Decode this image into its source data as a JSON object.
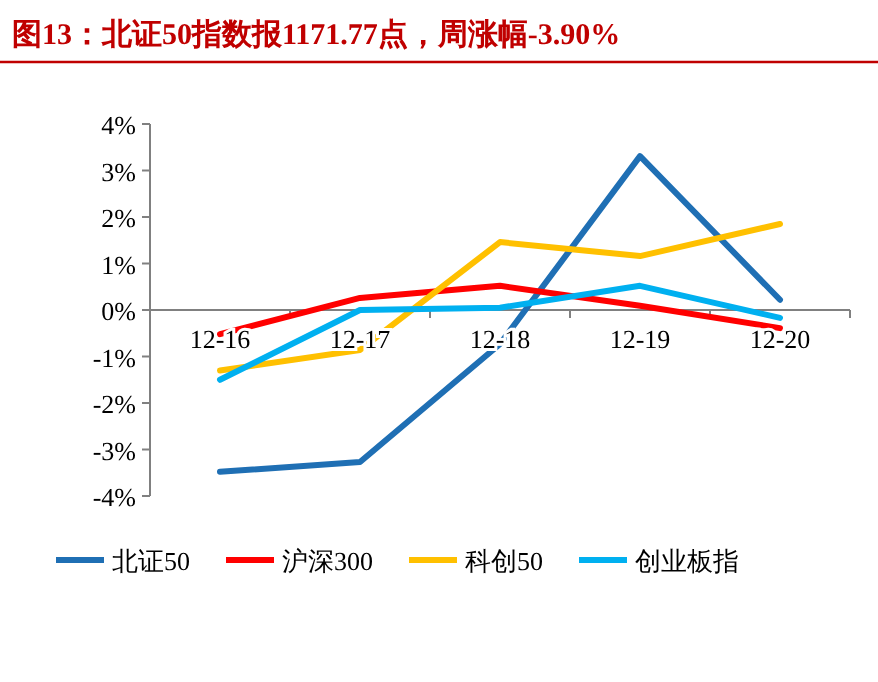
{
  "chart_data": {
    "type": "line",
    "title": "图13：北证50指数报1171.77点，周涨幅-3.90%",
    "categories": [
      "12-16",
      "12-17",
      "12-18",
      "12-19",
      "12-20"
    ],
    "series": [
      {
        "name": "北证50",
        "color": "#1f6fb4",
        "values": [
          -3.48,
          -3.27,
          -0.73,
          3.31,
          0.22
        ]
      },
      {
        "name": "沪深300",
        "color": "#ff0000",
        "values": [
          -0.52,
          0.26,
          0.52,
          0.09,
          -0.39
        ]
      },
      {
        "name": "科创50",
        "color": "#ffc000",
        "values": [
          -1.3,
          -0.86,
          1.46,
          1.16,
          1.85
        ]
      },
      {
        "name": "创业板指",
        "color": "#00b0f0",
        "values": [
          -1.5,
          0.0,
          0.05,
          0.52,
          -0.17
        ]
      }
    ],
    "ylim": [
      -4,
      4
    ],
    "yticks": [
      {
        "value": -4,
        "label": "-4%"
      },
      {
        "value": -3,
        "label": "-3%"
      },
      {
        "value": -2,
        "label": "-2%"
      },
      {
        "value": -1,
        "label": "-1%"
      },
      {
        "value": 0,
        "label": "0%"
      },
      {
        "value": 1,
        "label": "1%"
      },
      {
        "value": 2,
        "label": "2%"
      },
      {
        "value": 3,
        "label": "3%"
      },
      {
        "value": 4,
        "label": "4%"
      }
    ],
    "legend": "bottom",
    "marker": "none",
    "line_style": "solid",
    "grid": false
  }
}
